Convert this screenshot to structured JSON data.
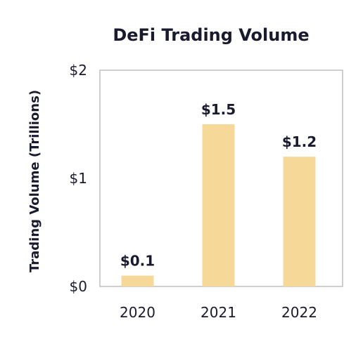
{
  "chart_data": {
    "type": "bar",
    "title": "DeFi Trading Volume",
    "xlabel": "",
    "ylabel": "Trading Volume (Trillions)",
    "categories": [
      "2020",
      "2021",
      "2022"
    ],
    "values": [
      0.1,
      1.5,
      1.2
    ],
    "data_labels": [
      "$0.1",
      "$1.5",
      "$1.2"
    ],
    "ylim": [
      0,
      2
    ],
    "yticks": [
      0,
      1,
      2
    ],
    "ytick_labels": [
      "$0",
      "$1",
      "$2"
    ],
    "grid": false,
    "colors": {
      "bar": "#f6d899",
      "axis": "#bfbfbf",
      "text": "#1a1a2e"
    }
  }
}
